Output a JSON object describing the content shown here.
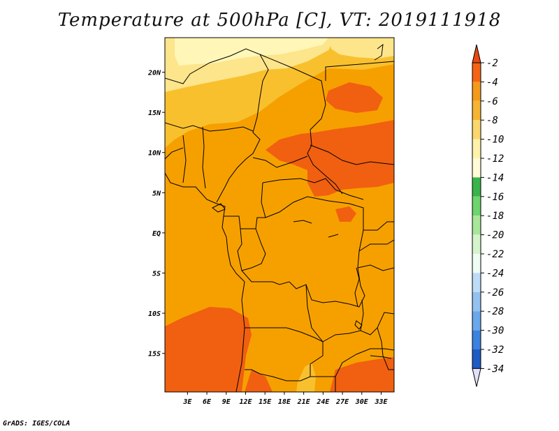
{
  "title": "Temperature at 500hPa [C], VT: 2019111918",
  "credit": "GrADS: IGES/COLA",
  "map": {
    "lon_range": [
      -0.5,
      35.0
    ],
    "lat_range": [
      -19.8,
      24.3
    ],
    "lat_ticks": [
      {
        "value": 20,
        "label": "20N"
      },
      {
        "value": 15,
        "label": "15N"
      },
      {
        "value": 10,
        "label": "10N"
      },
      {
        "value": 5,
        "label": "5N"
      },
      {
        "value": 0,
        "label": "EQ"
      },
      {
        "value": -5,
        "label": "5S"
      },
      {
        "value": -10,
        "label": "10S"
      },
      {
        "value": -15,
        "label": "15S"
      }
    ],
    "lon_ticks": [
      {
        "value": 3,
        "label": "3E"
      },
      {
        "value": 6,
        "label": "6E"
      },
      {
        "value": 9,
        "label": "9E"
      },
      {
        "value": 12,
        "label": "12E"
      },
      {
        "value": 15,
        "label": "15E"
      },
      {
        "value": 18,
        "label": "18E"
      },
      {
        "value": 21,
        "label": "21E"
      },
      {
        "value": 24,
        "label": "24E"
      },
      {
        "value": 27,
        "label": "27E"
      },
      {
        "value": 30,
        "label": "30E"
      },
      {
        "value": 33,
        "label": "33E"
      }
    ],
    "fill_colors": {
      "m2": "#f06010",
      "m4": "#f6a000",
      "m6": "#f9c02e",
      "m8": "#fde58c",
      "m10": "#fff6b8"
    }
  },
  "colorbar": {
    "labels": [
      "-2",
      "-4",
      "-6",
      "-8",
      "-10",
      "-12",
      "-14",
      "-16",
      "-18",
      "-20",
      "-22",
      "-24",
      "-26",
      "-28",
      "-30",
      "-32",
      "-34"
    ],
    "colors": [
      "#f46414",
      "#f49a1a",
      "#f6b432",
      "#fbd66c",
      "#fdf2aa",
      "#fffbd8",
      "#38b44a",
      "#6ed46c",
      "#a8e69a",
      "#d6f4cc",
      "#eefcf4",
      "#bedcf8",
      "#94c2f0",
      "#6aa8ec",
      "#3c82e0",
      "#1e5cc4",
      "#1a3c9c",
      "#141468",
      "#e2e0fa"
    ],
    "top_tip": "#e84a10",
    "bottom_tip": "#e2e0fa"
  }
}
